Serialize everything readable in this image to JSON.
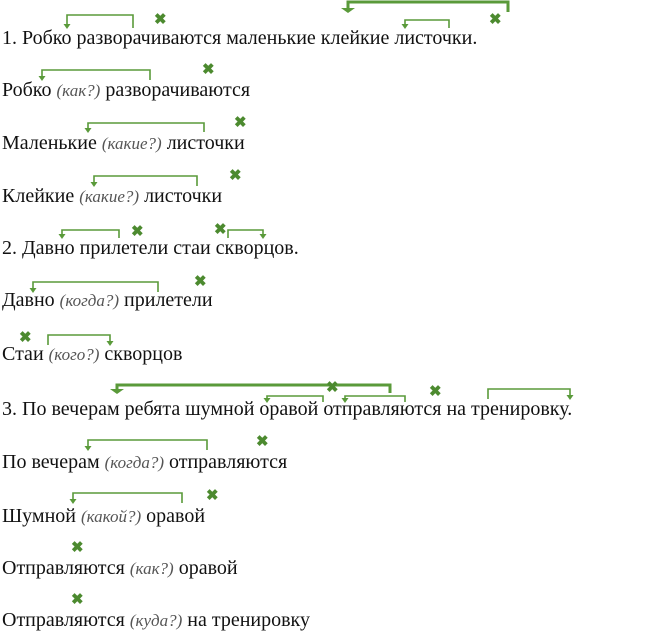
{
  "accent_color": "#5a9a3a",
  "rows": [
    {
      "parts": [
        "1. Робко разворачиваются маленькие клейкие листочки."
      ]
    },
    {
      "parts": [
        "Робко",
        "(как?)",
        "разворачиваются"
      ]
    },
    {
      "parts": [
        "Маленькие",
        "(какие?)",
        "листочки"
      ]
    },
    {
      "parts": [
        "Клейкие",
        "(какие?)",
        "листочки"
      ]
    },
    {
      "parts": [
        "2. Давно прилетели стаи скворцов."
      ]
    },
    {
      "parts": [
        "Давно",
        "(когда?)",
        "прилетели"
      ]
    },
    {
      "parts": [
        "Стаи",
        "(кого?)",
        "скворцов"
      ]
    },
    {
      "parts": [
        "3. По вечерам ребята шумной оравой отправляются на тренировку."
      ]
    },
    {
      "parts": [
        "По вечерам",
        "(когда?)",
        "отправляются"
      ]
    },
    {
      "parts": [
        "Шумной",
        "(какой?)",
        "оравой"
      ]
    },
    {
      "parts": [
        "Отправляются",
        "(как?)",
        "оравой"
      ]
    },
    {
      "parts": [
        "Отправляются",
        "(куда?)",
        "на тренировку"
      ]
    }
  ],
  "icons": {
    "cross": "cross-icon",
    "arrow": "dependency-arrow-icon"
  }
}
